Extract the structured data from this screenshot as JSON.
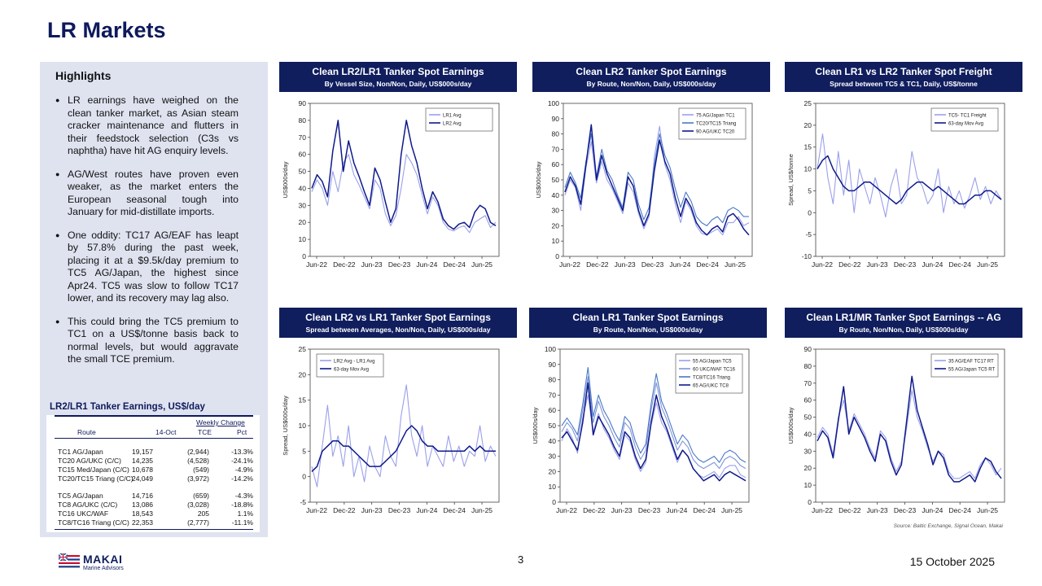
{
  "page": {
    "title": "LR Markets",
    "page_number": "3",
    "date": "15 October 2025",
    "source": "Source: Baltic Exchange, Signal Ocean, Makai",
    "logo": {
      "name": "MAKAI",
      "tagline": "Marine Advisors"
    }
  },
  "highlights": {
    "title": "Highlights",
    "bullets": [
      "LR earnings have weighed on the clean tanker market, as Asian steam cracker maintenance and flutters in their feedstock selection (C3s vs naphtha) have hit AG enquiry levels.",
      "AG/West routes have proven even weaker, as the market enters the European seasonal tough into January for mid-distillate imports.",
      "One oddity: TC17 AG/EAF has leapt by 57.8% during the past week, placing it at a $9.5k/day premium to TC5 AG/Japan, the highest since Apr24.  TC5 was slow to follow TC17 lower, and its recovery may lag also.",
      "This could bring the TC5 premium to TC1 on a US$/tonne basis back to normal levels, but would aggravate the small TCE premium."
    ]
  },
  "table": {
    "title": "LR2/LR1 Tanker Earnings, US$/day",
    "group_header": "Weekly Change",
    "headers": [
      "Route",
      "14-Oct",
      "TCE",
      "Pct"
    ],
    "rows": [
      [
        "TC1 AG/Japan",
        "19,157",
        "(2,944)",
        "-13.3%"
      ],
      [
        "TC20 AG/UKC (C/C)",
        "14,235",
        "(4,528)",
        "-24.1%"
      ],
      [
        "TC15 Med/Japan (C/C)",
        "10,678",
        "(549)",
        "-4.9%"
      ],
      [
        "TC20/TC15 Triang (C/C)",
        "24,049",
        "(3,972)",
        "-14.2%"
      ],
      [
        "TC5 AG/Japan",
        "14,716",
        "(659)",
        "-4.3%"
      ],
      [
        "TC8 AG/UKC (C/C)",
        "13,086",
        "(3,028)",
        "-18.8%"
      ],
      [
        "TC16 UKC/WAF",
        "18,543",
        "205",
        "1.1%"
      ],
      [
        "TC8/TC16 Triang (C/C)",
        "22,353",
        "(2,777)",
        "-11.1%"
      ]
    ]
  },
  "colors": {
    "navy": "#101e5e",
    "dark": "#0f1a8a",
    "mid": "#4a78c8",
    "light": "#9aa0ea",
    "lighter": "#7f96d8"
  },
  "x_ticks": [
    "Jun-22",
    "Dec-22",
    "Jun-23",
    "Dec-23",
    "Jun-24",
    "Dec-24",
    "Jun-25"
  ],
  "chart_data": [
    {
      "type": "line",
      "title": "Clean LR2/LR1 Tanker Spot Earnings",
      "subtitle": "By Vessel Size, Non/Non, Daily, US$000s/day",
      "ylabel": "US$000s/day",
      "ylim": [
        0,
        90
      ],
      "yticks": [
        0,
        10,
        20,
        30,
        40,
        50,
        60,
        70,
        80,
        90
      ],
      "legend": "top-right",
      "series": [
        {
          "name": "LR1 Avg",
          "color": "#9aa0ea",
          "values": [
            38,
            45,
            40,
            30,
            50,
            38,
            55,
            60,
            48,
            42,
            35,
            28,
            45,
            40,
            25,
            18,
            24,
            40,
            60,
            55,
            48,
            36,
            25,
            35,
            30,
            20,
            16,
            15,
            17,
            18,
            14,
            20,
            22,
            24,
            17,
            20
          ]
        },
        {
          "name": "LR2 Avg",
          "color": "#0f1a8a",
          "values": [
            40,
            48,
            44,
            35,
            62,
            80,
            50,
            68,
            55,
            47,
            38,
            30,
            52,
            45,
            32,
            20,
            28,
            60,
            80,
            65,
            55,
            40,
            28,
            38,
            32,
            22,
            18,
            16,
            19,
            20,
            17,
            26,
            30,
            28,
            20,
            18
          ]
        }
      ]
    },
    {
      "type": "line",
      "title": "Clean LR2 Tanker Spot Earnings",
      "subtitle": "By Route, Non/Non, Daily, US$000s/day",
      "ylabel": "US$000s/day",
      "ylim": [
        0,
        100
      ],
      "yticks": [
        0,
        10,
        20,
        30,
        40,
        50,
        60,
        70,
        80,
        90,
        100
      ],
      "legend": "top-right",
      "series": [
        {
          "name": "75 AG/Japan TC1",
          "color": "#9aa0ea",
          "values": [
            40,
            50,
            45,
            30,
            58,
            75,
            48,
            62,
            50,
            44,
            36,
            28,
            48,
            42,
            28,
            18,
            26,
            65,
            85,
            60,
            50,
            34,
            22,
            36,
            30,
            20,
            15,
            14,
            16,
            18,
            14,
            22,
            22,
            26,
            20,
            22
          ]
        },
        {
          "name": "TC20/TC15 Triang",
          "color": "#4a78c8",
          "values": [
            45,
            55,
            48,
            38,
            62,
            80,
            52,
            70,
            56,
            50,
            40,
            32,
            55,
            50,
            34,
            24,
            32,
            60,
            80,
            66,
            58,
            44,
            32,
            42,
            36,
            26,
            22,
            20,
            24,
            26,
            22,
            30,
            32,
            30,
            26,
            26
          ]
        },
        {
          "name": "90 AG/UKC TC20",
          "color": "#0f1a8a",
          "values": [
            42,
            52,
            46,
            34,
            60,
            86,
            50,
            66,
            54,
            46,
            38,
            30,
            52,
            46,
            30,
            20,
            28,
            56,
            76,
            62,
            54,
            38,
            26,
            38,
            32,
            22,
            17,
            14,
            18,
            20,
            16,
            26,
            28,
            24,
            18,
            14
          ]
        }
      ]
    },
    {
      "type": "line",
      "title": "Clean LR1 vs LR2 Tanker Spot Freight",
      "subtitle": "Spread between TC5 & TC1, Daily, US$/tonne",
      "ylabel": "Spread, US$/tonne",
      "ylim": [
        -10,
        25
      ],
      "yticks": [
        -10,
        -5,
        0,
        5,
        10,
        15,
        20,
        25
      ],
      "legend": "top-right",
      "series": [
        {
          "name": "TC5- TC1 Freight",
          "color": "#9aa0ea",
          "values": [
            10,
            18,
            8,
            2,
            14,
            4,
            12,
            0,
            10,
            6,
            2,
            8,
            4,
            -1,
            6,
            10,
            2,
            4,
            14,
            8,
            6,
            2,
            4,
            10,
            0,
            6,
            2,
            5,
            1,
            4,
            8,
            3,
            6,
            2,
            5,
            3
          ]
        },
        {
          "name": "63-day Mov Avg",
          "color": "#0f1a8a",
          "values": [
            10,
            12,
            13,
            10,
            8,
            6,
            5,
            5,
            6,
            7,
            7,
            6,
            5,
            4,
            3,
            2,
            3,
            5,
            6,
            7,
            7,
            6,
            5,
            6,
            5,
            4,
            3,
            2,
            2,
            3,
            4,
            4,
            5,
            5,
            4,
            3
          ]
        }
      ]
    },
    {
      "type": "line",
      "title": "Clean LR2 vs LR1 Tanker Spot Earnings",
      "subtitle": "Spread between Averages, Non/Non, Daily, US$000s/day",
      "ylabel": "Spread, US$000s/day",
      "ylim": [
        -5,
        25
      ],
      "yticks": [
        -5,
        0,
        5,
        10,
        15,
        20,
        25
      ],
      "legend": "top-left",
      "series": [
        {
          "name": "LR2 Avg - LR1 Avg",
          "color": "#9aa0ea",
          "values": [
            2,
            -2,
            6,
            14,
            4,
            8,
            2,
            10,
            0,
            4,
            -1,
            6,
            2,
            0,
            8,
            4,
            2,
            12,
            18,
            8,
            4,
            10,
            2,
            6,
            4,
            2,
            8,
            3,
            6,
            2,
            5,
            4,
            10,
            3,
            6,
            4
          ]
        },
        {
          "name": "63-day Mov Avg",
          "color": "#0f1a8a",
          "values": [
            1,
            2,
            5,
            6,
            7,
            7,
            6,
            6,
            5,
            4,
            3,
            2,
            2,
            2,
            3,
            4,
            5,
            7,
            9,
            10,
            9,
            7,
            6,
            6,
            5,
            5,
            5,
            5,
            5,
            5,
            6,
            5,
            6,
            5,
            5,
            5
          ]
        }
      ]
    },
    {
      "type": "line",
      "title": "Clean LR1 Tanker Spot Earnings",
      "subtitle": "By Route, Non/Non, US$000s/day",
      "ylabel": "US$000s/day",
      "ylim": [
        0,
        100
      ],
      "yticks": [
        0,
        10,
        20,
        30,
        40,
        50,
        60,
        70,
        80,
        90,
        100
      ],
      "legend": "top-right",
      "series": [
        {
          "name": "55 AG/Japan TC5",
          "color": "#9aa0ea",
          "values": [
            40,
            48,
            42,
            32,
            55,
            70,
            46,
            58,
            48,
            42,
            34,
            28,
            44,
            40,
            28,
            20,
            26,
            50,
            65,
            52,
            46,
            36,
            26,
            34,
            30,
            22,
            18,
            16,
            18,
            20,
            16,
            22,
            24,
            24,
            18,
            16
          ]
        },
        {
          "name": "60 UKC/WAF TC16",
          "color": "#7f96d8",
          "values": [
            46,
            52,
            48,
            40,
            60,
            82,
            52,
            66,
            56,
            50,
            42,
            36,
            52,
            48,
            36,
            28,
            34,
            60,
            78,
            62,
            54,
            44,
            34,
            40,
            36,
            28,
            24,
            22,
            24,
            26,
            22,
            28,
            30,
            28,
            24,
            22
          ]
        },
        {
          "name": "TC8/TC16 Triang",
          "color": "#4a78c8",
          "values": [
            50,
            55,
            50,
            44,
            64,
            88,
            56,
            70,
            60,
            54,
            46,
            40,
            56,
            52,
            40,
            32,
            38,
            64,
            84,
            66,
            58,
            48,
            38,
            44,
            40,
            32,
            28,
            26,
            28,
            30,
            26,
            32,
            34,
            32,
            28,
            26
          ]
        },
        {
          "name": "65 AG/UKC TC8",
          "color": "#0f1a8a",
          "values": [
            42,
            46,
            40,
            34,
            52,
            78,
            44,
            56,
            50,
            44,
            36,
            30,
            46,
            42,
            30,
            22,
            28,
            52,
            70,
            56,
            48,
            38,
            28,
            34,
            30,
            22,
            18,
            14,
            16,
            18,
            14,
            18,
            20,
            18,
            16,
            14
          ]
        }
      ]
    },
    {
      "type": "line",
      "title": "Clean LR1/MR Tanker Spot Earnings -- AG",
      "subtitle": "By Route, Non/Non, Daily, US$000s/day",
      "ylabel": "US$000s/day",
      "ylim": [
        0,
        90
      ],
      "yticks": [
        0,
        10,
        20,
        30,
        40,
        50,
        60,
        70,
        80,
        90
      ],
      "legend": "top-right",
      "series": [
        {
          "name": "35 AG/EAF TC17 RT",
          "color": "#9aa0ea",
          "values": [
            38,
            44,
            40,
            28,
            50,
            60,
            42,
            52,
            46,
            40,
            32,
            26,
            42,
            38,
            26,
            18,
            24,
            44,
            66,
            50,
            42,
            32,
            24,
            30,
            28,
            18,
            14,
            14,
            16,
            18,
            14,
            22,
            26,
            22,
            16,
            20
          ]
        },
        {
          "name": "55 AG/Japan TC5 RT",
          "color": "#0f1a8a",
          "values": [
            36,
            42,
            38,
            26,
            48,
            68,
            40,
            50,
            44,
            38,
            30,
            24,
            40,
            36,
            24,
            16,
            22,
            48,
            74,
            54,
            44,
            34,
            22,
            30,
            26,
            16,
            12,
            12,
            14,
            16,
            12,
            20,
            26,
            24,
            18,
            14
          ]
        }
      ]
    }
  ]
}
